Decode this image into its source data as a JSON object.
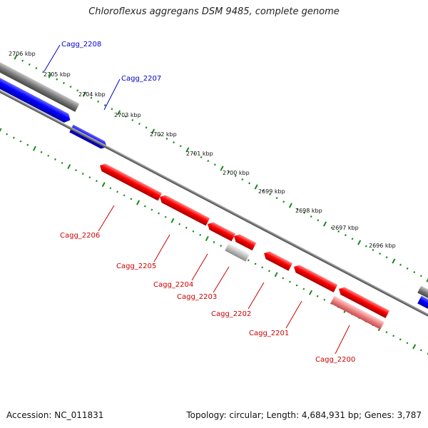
{
  "title": "Chloroflexus aggregans DSM 9485, complete genome",
  "scale_labels": [
    "2706 kbp",
    "2705 kbp",
    "2704 kbp",
    "2703 kbp",
    "2702 kbp",
    "2701 kbp",
    "2700 kbp",
    "2699 kbp",
    "2698 kbp",
    "2697 kbp",
    "2696 kbp"
  ],
  "genes_forward": [
    {
      "name": "Cagg_2208",
      "strand": "forward",
      "color": "#0000cc"
    },
    {
      "name": "Cagg_2207",
      "strand": "forward",
      "color": "#0000cc"
    }
  ],
  "genes_reverse": [
    {
      "name": "Cagg_2206",
      "strand": "reverse",
      "color": "#cc0000"
    },
    {
      "name": "Cagg_2205",
      "strand": "reverse",
      "color": "#cc0000"
    },
    {
      "name": "Cagg_2204",
      "strand": "reverse",
      "color": "#cc0000"
    },
    {
      "name": "Cagg_2203",
      "strand": "reverse",
      "color": "#cc0000"
    },
    {
      "name": "Cagg_2202",
      "strand": "reverse",
      "color": "#cc0000"
    },
    {
      "name": "Cagg_2201",
      "strand": "reverse",
      "color": "#cc0000"
    },
    {
      "name": "Cagg_2200",
      "strand": "reverse",
      "color": "#cc0000"
    }
  ],
  "footer": {
    "accession": "Accession: NC_011831",
    "stats": "Topology: circular; Length: 4,684,931 bp; Genes: 3,787"
  },
  "colors": {
    "forward_gene": "#0000ff",
    "reverse_gene": "#ff0000",
    "pseudo_gene": "#f08080",
    "rna_gene": "#c0c0c0",
    "backbone": "#808080",
    "ticks": "#1a8a1a"
  }
}
